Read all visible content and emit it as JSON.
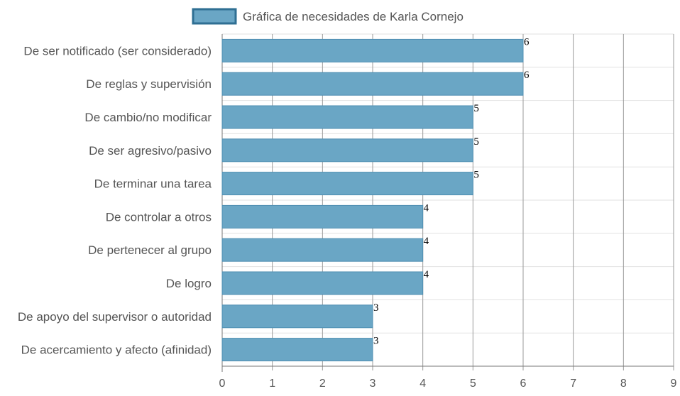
{
  "chart_data": {
    "type": "bar",
    "orientation": "horizontal",
    "categories": [
      "De ser notificado (ser considerado)",
      "De reglas y supervisión",
      "De cambio/no modificar",
      "De ser agresivo/pasivo",
      "De terminar una tarea",
      "De controlar a otros",
      "De pertenecer al grupo",
      "De logro",
      "De apoyo del supervisor o autoridad",
      "De acercamiento y afecto (afinidad)"
    ],
    "series": [
      {
        "name": "Gráfica de necesidades de Karla Cornejo",
        "values": [
          6,
          6,
          5,
          5,
          5,
          4,
          4,
          4,
          3,
          3
        ]
      }
    ],
    "xlim": [
      0,
      9
    ],
    "x_ticks": [
      "0",
      "1",
      "2",
      "3",
      "4",
      "5",
      "6",
      "7",
      "8",
      "9"
    ],
    "grid": true,
    "legend_position": "top",
    "colors": {
      "bar_fill": "#6aa6c5",
      "bar_stroke": "#4f8fb2",
      "legend_stroke": "#2f6f93",
      "grid_major": "#9a9a9a",
      "grid_minor": "#e2e2e2"
    }
  }
}
